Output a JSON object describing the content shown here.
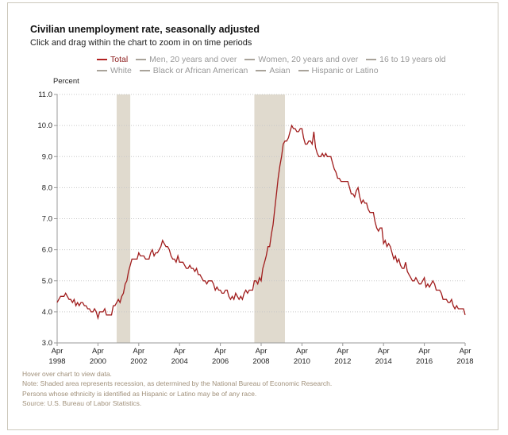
{
  "chart_data": {
    "type": "line",
    "title": "Civilian unemployment rate, seasonally adjusted",
    "subtitle": "Click and drag within the chart to zoom in on time periods",
    "ylabel": "Percent",
    "ylim": [
      3.0,
      11.0
    ],
    "yticks": [
      "3.0",
      "4.0",
      "5.0",
      "6.0",
      "7.0",
      "8.0",
      "9.0",
      "10.0",
      "11.0"
    ],
    "xticks": [
      [
        "Apr",
        "1998"
      ],
      [
        "Apr",
        "2000"
      ],
      [
        "Apr",
        "2002"
      ],
      [
        "Apr",
        "2004"
      ],
      [
        "Apr",
        "2006"
      ],
      [
        "Apr",
        "2008"
      ],
      [
        "Apr",
        "2010"
      ],
      [
        "Apr",
        "2012"
      ],
      [
        "Apr",
        "2014"
      ],
      [
        "Apr",
        "2016"
      ],
      [
        "Apr",
        "2018"
      ]
    ],
    "grid": "horizontal dotted",
    "legend": [
      {
        "label": "Total",
        "active": true
      },
      {
        "label": "Men, 20 years and over",
        "active": false
      },
      {
        "label": "Women, 20 years and over",
        "active": false
      },
      {
        "label": "16 to 19 years old",
        "active": false
      },
      {
        "label": "White",
        "active": false
      },
      {
        "label": "Black or African American",
        "active": false
      },
      {
        "label": "Asian",
        "active": false
      },
      {
        "label": "Hispanic or Latino",
        "active": false
      }
    ],
    "recessions": [
      [
        "2001-03",
        "2001-11"
      ],
      [
        "2007-12",
        "2009-06"
      ]
    ],
    "series": [
      {
        "name": "Total",
        "color": "#a01c1c",
        "start": "1998-04",
        "frequency": "monthly",
        "values": [
          4.3,
          4.4,
          4.5,
          4.5,
          4.5,
          4.6,
          4.5,
          4.4,
          4.4,
          4.3,
          4.4,
          4.2,
          4.3,
          4.2,
          4.3,
          4.3,
          4.2,
          4.2,
          4.1,
          4.1,
          4.0,
          4.0,
          4.1,
          4.0,
          3.8,
          4.0,
          4.0,
          4.0,
          4.1,
          3.9,
          3.9,
          3.9,
          3.9,
          4.2,
          4.2,
          4.3,
          4.4,
          4.3,
          4.5,
          4.6,
          4.9,
          5.0,
          5.3,
          5.5,
          5.7,
          5.7,
          5.7,
          5.7,
          5.9,
          5.8,
          5.8,
          5.8,
          5.7,
          5.7,
          5.7,
          5.9,
          6.0,
          5.8,
          5.9,
          5.9,
          6.0,
          6.1,
          6.3,
          6.2,
          6.1,
          6.1,
          6.0,
          5.8,
          5.7,
          5.7,
          5.6,
          5.8,
          5.6,
          5.6,
          5.6,
          5.5,
          5.4,
          5.4,
          5.5,
          5.4,
          5.4,
          5.3,
          5.4,
          5.2,
          5.2,
          5.1,
          5.0,
          5.0,
          4.9,
          5.0,
          5.0,
          5.0,
          4.9,
          4.7,
          4.8,
          4.7,
          4.7,
          4.6,
          4.6,
          4.7,
          4.7,
          4.5,
          4.4,
          4.5,
          4.4,
          4.6,
          4.5,
          4.4,
          4.5,
          4.4,
          4.6,
          4.7,
          4.6,
          4.7,
          4.7,
          4.7,
          5.0,
          5.0,
          4.9,
          5.1,
          5.0,
          5.4,
          5.6,
          5.8,
          6.1,
          6.1,
          6.5,
          6.8,
          7.3,
          7.8,
          8.3,
          8.7,
          9.0,
          9.4,
          9.5,
          9.5,
          9.6,
          9.8,
          10.0,
          9.9,
          9.9,
          9.8,
          9.8,
          9.9,
          9.9,
          9.6,
          9.4,
          9.4,
          9.5,
          9.5,
          9.4,
          9.8,
          9.3,
          9.1,
          9.0,
          9.0,
          9.1,
          9.0,
          9.1,
          9.0,
          9.0,
          9.0,
          8.8,
          8.6,
          8.5,
          8.3,
          8.3,
          8.2,
          8.2,
          8.2,
          8.2,
          8.2,
          8.0,
          7.8,
          7.8,
          7.7,
          7.9,
          8.0,
          7.7,
          7.5,
          7.6,
          7.5,
          7.5,
          7.3,
          7.2,
          7.2,
          7.2,
          6.9,
          6.7,
          6.6,
          6.7,
          6.7,
          6.2,
          6.3,
          6.1,
          6.2,
          6.1,
          5.9,
          5.7,
          5.8,
          5.6,
          5.7,
          5.5,
          5.4,
          5.4,
          5.6,
          5.3,
          5.2,
          5.1,
          5.0,
          5.0,
          5.1,
          5.0,
          4.9,
          4.9,
          5.0,
          5.1,
          4.8,
          4.9,
          4.8,
          4.9,
          5.0,
          4.9,
          4.7,
          4.7,
          4.7,
          4.6,
          4.4,
          4.4,
          4.4,
          4.3,
          4.3,
          4.4,
          4.2,
          4.1,
          4.2,
          4.1,
          4.1,
          4.1,
          4.1,
          3.9
        ]
      }
    ]
  },
  "notes": [
    "Hover over chart to view data.",
    "Note: Shaded area represents recession, as determined by the National Bureau of Economic Research.",
    "Persons whose ethnicity is identified as Hispanic or Latino may be of any race.",
    "Source: U.S. Bureau of Labor Statistics."
  ]
}
